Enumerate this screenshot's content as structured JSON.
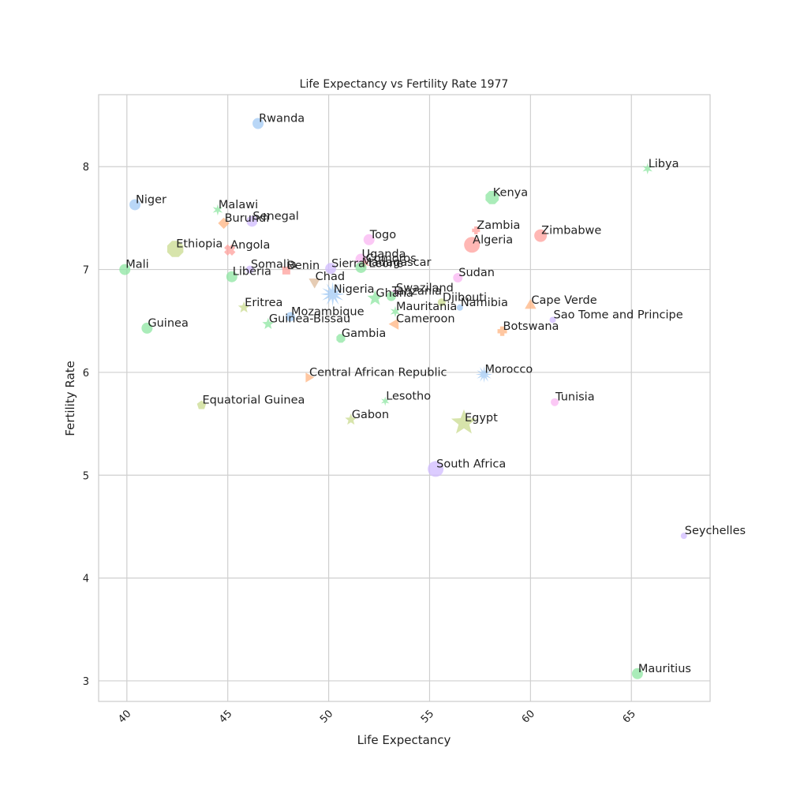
{
  "chart_data": {
    "type": "scatter",
    "title": "Life Expectancy vs Fertility Rate 1977",
    "xlabel": "Life Expectancy",
    "ylabel": "Fertility Rate",
    "xlim": [
      38.6,
      68.9
    ],
    "ylim": [
      2.8,
      8.7
    ],
    "xticks": [
      40,
      45,
      50,
      55,
      60,
      65
    ],
    "yticks": [
      3,
      4,
      5,
      6,
      7,
      8
    ],
    "grid": true,
    "legend": "none",
    "points": [
      {
        "label": "Rwanda",
        "x": 46.5,
        "y": 8.42,
        "color": "#a1c9f4",
        "marker": "circle",
        "size": 7
      },
      {
        "label": "Libya",
        "x": 65.8,
        "y": 7.98,
        "color": "#8de5a1",
        "marker": "star6",
        "size": 6
      },
      {
        "label": "Niger",
        "x": 40.4,
        "y": 7.63,
        "color": "#a1c9f4",
        "marker": "circle",
        "size": 7
      },
      {
        "label": "Malawi",
        "x": 44.5,
        "y": 7.58,
        "color": "#8de5a1",
        "marker": "star6",
        "size": 6
      },
      {
        "label": "Kenya",
        "x": 58.1,
        "y": 7.7,
        "color": "#8de5a1",
        "marker": "octagon",
        "size": 9
      },
      {
        "label": "Burundi",
        "x": 44.8,
        "y": 7.45,
        "color": "#ffb482",
        "marker": "diamond",
        "size": 6
      },
      {
        "label": "Senegal",
        "x": 46.2,
        "y": 7.47,
        "color": "#d0bbff",
        "marker": "circle",
        "size": 7
      },
      {
        "label": "Zambia",
        "x": 57.3,
        "y": 7.38,
        "color": "#ff9f9b",
        "marker": "plus",
        "size": 5
      },
      {
        "label": "Zimbabwe",
        "x": 60.5,
        "y": 7.33,
        "color": "#ff9f9b",
        "marker": "circle",
        "size": 8
      },
      {
        "label": "Togo",
        "x": 52.0,
        "y": 7.29,
        "color": "#f9b6f1",
        "marker": "circle",
        "size": 7
      },
      {
        "label": "Algeria",
        "x": 57.1,
        "y": 7.24,
        "color": "#ff9f9b",
        "marker": "circle",
        "size": 10
      },
      {
        "label": "Ethiopia",
        "x": 42.4,
        "y": 7.2,
        "color": "#cadb8f",
        "marker": "octagon",
        "size": 11
      },
      {
        "label": "Angola",
        "x": 45.1,
        "y": 7.19,
        "color": "#ff9f9b",
        "marker": "x",
        "size": 7
      },
      {
        "label": "Uganda",
        "x": 51.6,
        "y": 7.1,
        "color": "#f9b6f1",
        "marker": "circle",
        "size": 7
      },
      {
        "label": "Comoros",
        "x": 51.8,
        "y": 7.06,
        "color": "#ff9f9b",
        "marker": "star6",
        "size": 6
      },
      {
        "label": "Madagascar",
        "x": 51.6,
        "y": 7.02,
        "color": "#8de5a1",
        "marker": "circle",
        "size": 7
      },
      {
        "label": "Somalia",
        "x": 46.1,
        "y": 7.0,
        "color": "#d0bbff",
        "marker": "circle",
        "size": 5
      },
      {
        "label": "Benin",
        "x": 47.9,
        "y": 6.99,
        "color": "#ff9f9b",
        "marker": "square",
        "size": 5
      },
      {
        "label": "Sierra Leone",
        "x": 50.1,
        "y": 7.01,
        "color": "#d0bbff",
        "marker": "circle",
        "size": 7
      },
      {
        "label": "Mali",
        "x": 39.9,
        "y": 7.0,
        "color": "#8de5a1",
        "marker": "circle",
        "size": 7
      },
      {
        "label": "Liberia",
        "x": 45.2,
        "y": 6.93,
        "color": "#8de5a1",
        "marker": "circle",
        "size": 7
      },
      {
        "label": "Sudan",
        "x": 56.4,
        "y": 6.92,
        "color": "#f9b6f1",
        "marker": "circle",
        "size": 6
      },
      {
        "label": "Chad",
        "x": 49.3,
        "y": 6.88,
        "color": "#debb9b",
        "marker": "triangle-down",
        "size": 7
      },
      {
        "label": "Nigeria",
        "x": 50.2,
        "y": 6.76,
        "color": "#a1c9f4",
        "marker": "star12",
        "size": 13
      },
      {
        "label": "Swaziland",
        "x": 53.3,
        "y": 6.77,
        "color": "#f9b6f1",
        "marker": "circle",
        "size": 5
      },
      {
        "label": "Tanzania",
        "x": 53.1,
        "y": 6.74,
        "color": "#8de5a1",
        "marker": "circle",
        "size": 6
      },
      {
        "label": "Ghana",
        "x": 52.3,
        "y": 6.72,
        "color": "#8de5a1",
        "marker": "star",
        "size": 8
      },
      {
        "label": "Djibouti",
        "x": 55.6,
        "y": 6.68,
        "color": "#cadb8f",
        "marker": "circle",
        "size": 5
      },
      {
        "label": "Namibia",
        "x": 56.5,
        "y": 6.63,
        "color": "#a1c9f4",
        "marker": "circle",
        "size": 4
      },
      {
        "label": "Cape Verde",
        "x": 60.0,
        "y": 6.65,
        "color": "#ffb482",
        "marker": "triangle",
        "size": 7
      },
      {
        "label": "Eritrea",
        "x": 45.8,
        "y": 6.63,
        "color": "#cadb8f",
        "marker": "star",
        "size": 6
      },
      {
        "label": "Mauritania",
        "x": 53.3,
        "y": 6.59,
        "color": "#8de5a1",
        "marker": "star6",
        "size": 6
      },
      {
        "label": "Mozambique",
        "x": 48.1,
        "y": 6.54,
        "color": "#a1c9f4",
        "marker": "circle",
        "size": 6
      },
      {
        "label": "Sao Tome and Principe",
        "x": 61.1,
        "y": 6.51,
        "color": "#d0bbff",
        "marker": "circle",
        "size": 4
      },
      {
        "label": "Guinea-Bissau",
        "x": 47.0,
        "y": 6.47,
        "color": "#8de5a1",
        "marker": "star",
        "size": 6
      },
      {
        "label": "Cameroon",
        "x": 53.3,
        "y": 6.47,
        "color": "#ffb482",
        "marker": "triangle-left",
        "size": 7
      },
      {
        "label": "Guinea",
        "x": 41.0,
        "y": 6.43,
        "color": "#8de5a1",
        "marker": "circle",
        "size": 7
      },
      {
        "label": "Botswana",
        "x": 58.6,
        "y": 6.4,
        "color": "#ffb482",
        "marker": "plus",
        "size": 6
      },
      {
        "label": "Gambia",
        "x": 50.6,
        "y": 6.33,
        "color": "#8de5a1",
        "marker": "octagon",
        "size": 6
      },
      {
        "label": "Morocco",
        "x": 57.7,
        "y": 5.98,
        "color": "#a1c9f4",
        "marker": "star12",
        "size": 9
      },
      {
        "label": "Central African Republic",
        "x": 49.0,
        "y": 5.95,
        "color": "#ffb482",
        "marker": "triangle-right",
        "size": 6
      },
      {
        "label": "Lesotho",
        "x": 52.8,
        "y": 5.72,
        "color": "#8de5a1",
        "marker": "star6",
        "size": 5
      },
      {
        "label": "Tunisia",
        "x": 61.2,
        "y": 5.71,
        "color": "#f9b6f1",
        "marker": "circle",
        "size": 5
      },
      {
        "label": "Equatorial Guinea",
        "x": 43.7,
        "y": 5.68,
        "color": "#cadb8f",
        "marker": "pentagon",
        "size": 6
      },
      {
        "label": "Gabon",
        "x": 51.1,
        "y": 5.54,
        "color": "#cadb8f",
        "marker": "star",
        "size": 6
      },
      {
        "label": "Egypt",
        "x": 56.7,
        "y": 5.51,
        "color": "#cadb8f",
        "marker": "star",
        "size": 13
      },
      {
        "label": "South Africa",
        "x": 55.3,
        "y": 5.06,
        "color": "#d0bbff",
        "marker": "circle",
        "size": 10
      },
      {
        "label": "Seychelles",
        "x": 67.6,
        "y": 4.41,
        "color": "#d0bbff",
        "marker": "circle",
        "size": 4
      },
      {
        "label": "Mauritius",
        "x": 65.3,
        "y": 3.07,
        "color": "#8de5a1",
        "marker": "circle",
        "size": 7
      }
    ]
  }
}
